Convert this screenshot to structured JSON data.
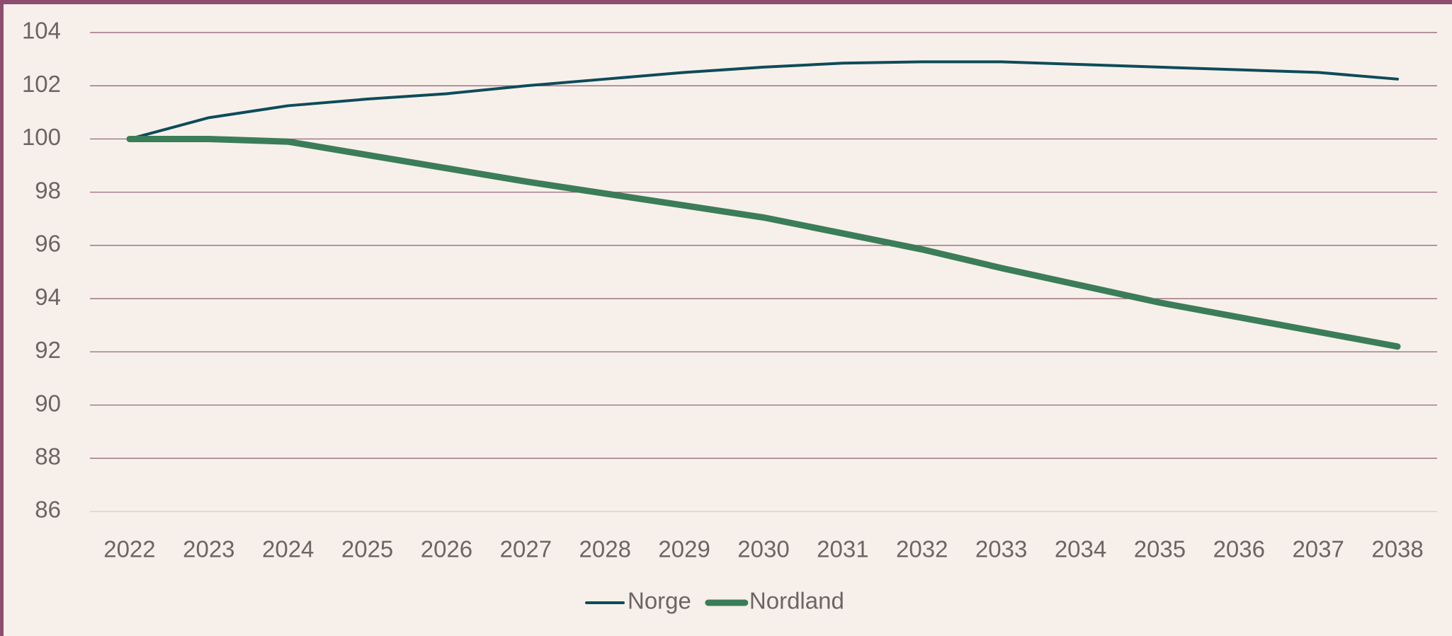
{
  "chart_data": {
    "type": "line",
    "categories": [
      "2022",
      "2023",
      "2024",
      "2025",
      "2026",
      "2027",
      "2028",
      "2029",
      "2030",
      "2031",
      "2032",
      "2033",
      "2034",
      "2035",
      "2036",
      "2037",
      "2038"
    ],
    "series": [
      {
        "name": "Norge",
        "color": "#0e4b5a",
        "line_width": 4,
        "values": [
          100,
          100.8,
          101.25,
          101.5,
          101.7,
          102.0,
          102.25,
          102.5,
          102.7,
          102.85,
          102.9,
          102.9,
          102.8,
          102.7,
          102.6,
          102.5,
          102.25
        ]
      },
      {
        "name": "Nordland",
        "color": "#3b7d58",
        "line_width": 9,
        "values": [
          100,
          100,
          99.9,
          99.4,
          98.9,
          98.4,
          97.95,
          97.5,
          97.05,
          96.45,
          95.85,
          95.15,
          94.5,
          93.85,
          93.3,
          92.75,
          92.2
        ]
      }
    ],
    "ylim": [
      86,
      104
    ],
    "yticks": [
      86,
      88,
      90,
      92,
      94,
      96,
      98,
      100,
      102,
      104
    ],
    "grid": true,
    "grid_color": "#8c5a70",
    "legend": "bottom"
  }
}
